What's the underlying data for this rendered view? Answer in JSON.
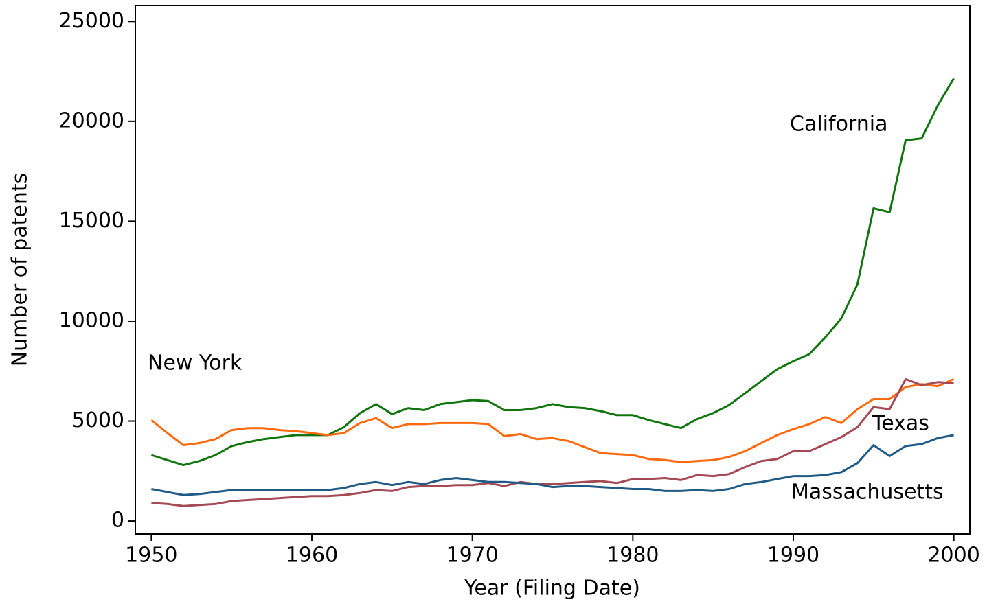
{
  "chart_data": {
    "type": "line",
    "x_label": "Year (Filing Date)",
    "y_label": "Number of patents",
    "x": [
      1950,
      1951,
      1952,
      1953,
      1954,
      1955,
      1956,
      1957,
      1958,
      1959,
      1960,
      1961,
      1962,
      1963,
      1964,
      1965,
      1966,
      1967,
      1968,
      1969,
      1970,
      1971,
      1972,
      1973,
      1974,
      1975,
      1976,
      1977,
      1978,
      1979,
      1980,
      1981,
      1982,
      1983,
      1984,
      1985,
      1986,
      1987,
      1988,
      1989,
      1990,
      1991,
      1992,
      1993,
      1994,
      1995,
      1996,
      1997,
      1998,
      1999,
      2000
    ],
    "series": [
      {
        "name": "California",
        "color": "#11750f",
        "values": [
          3300,
          3050,
          2800,
          3000,
          3300,
          3750,
          3950,
          4100,
          4200,
          4300,
          4300,
          4300,
          4700,
          5400,
          5850,
          5350,
          5650,
          5550,
          5850,
          5950,
          6050,
          6000,
          5550,
          5550,
          5650,
          5850,
          5700,
          5650,
          5500,
          5300,
          5300,
          5050,
          4850,
          4650,
          5100,
          5400,
          5800,
          6400,
          7000,
          7600,
          8000,
          8350,
          9200,
          10150,
          11850,
          15650,
          15450,
          19050,
          19150,
          20800,
          22150
        ]
      },
      {
        "name": "New York",
        "color": "#ff6a0e",
        "values": [
          5050,
          4400,
          3800,
          3900,
          4100,
          4550,
          4650,
          4650,
          4550,
          4500,
          4400,
          4300,
          4400,
          4900,
          5150,
          4650,
          4850,
          4850,
          4900,
          4900,
          4900,
          4850,
          4250,
          4350,
          4100,
          4150,
          4000,
          3700,
          3400,
          3350,
          3300,
          3100,
          3050,
          2950,
          3000,
          3050,
          3200,
          3500,
          3900,
          4300,
          4600,
          4850,
          5200,
          4900,
          5600,
          6100,
          6100,
          6700,
          6850,
          6750,
          7100
        ]
      },
      {
        "name": "Texas",
        "color": "#a44a55",
        "values": [
          900,
          850,
          750,
          800,
          850,
          1000,
          1050,
          1100,
          1150,
          1200,
          1250,
          1250,
          1300,
          1400,
          1550,
          1500,
          1700,
          1750,
          1750,
          1800,
          1800,
          1900,
          1750,
          1950,
          1850,
          1850,
          1900,
          1950,
          2000,
          1900,
          2100,
          2100,
          2150,
          2050,
          2300,
          2250,
          2350,
          2700,
          3000,
          3100,
          3500,
          3500,
          3850,
          4200,
          4700,
          5700,
          5600,
          7100,
          6800,
          6950,
          6900
        ]
      },
      {
        "name": "Massachusetts",
        "color": "#1f5b84",
        "values": [
          1600,
          1450,
          1300,
          1350,
          1450,
          1550,
          1550,
          1550,
          1550,
          1550,
          1550,
          1550,
          1650,
          1850,
          1950,
          1800,
          1950,
          1850,
          2050,
          2150,
          2050,
          1950,
          1950,
          1900,
          1850,
          1700,
          1750,
          1750,
          1700,
          1650,
          1600,
          1600,
          1500,
          1500,
          1550,
          1500,
          1600,
          1850,
          1950,
          2100,
          2250,
          2250,
          2300,
          2450,
          2900,
          3800,
          3250,
          3750,
          3850,
          4150,
          4300
        ]
      }
    ],
    "xlim": [
      1949.0,
      2001.0
    ],
    "ylim": [
      -650,
      25800
    ],
    "xticks": [
      1950,
      1960,
      1970,
      1980,
      1990,
      2000
    ],
    "yticks": [
      0,
      5000,
      10000,
      15000,
      20000,
      25000
    ]
  }
}
